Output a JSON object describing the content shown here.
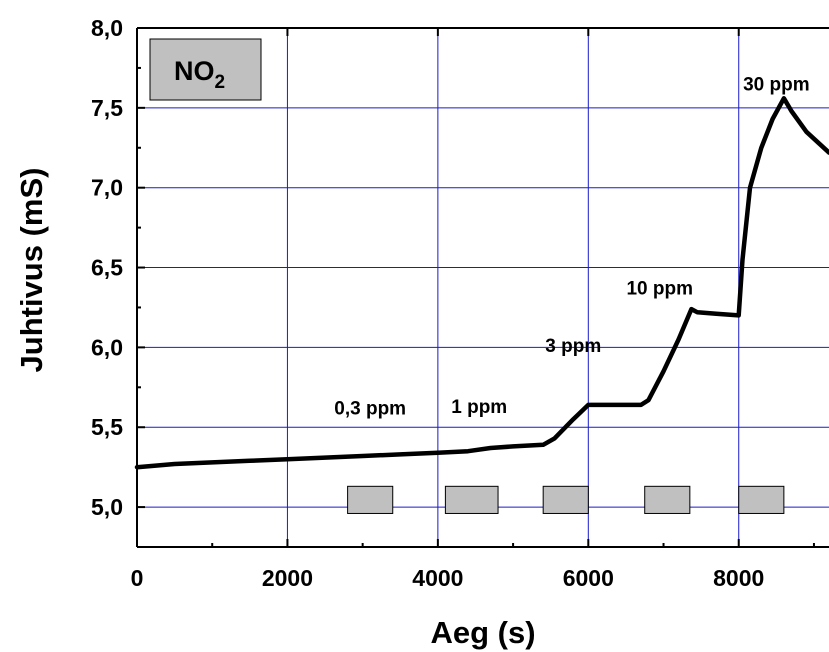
{
  "chart_data": {
    "type": "line",
    "xlabel": "Aeg (s)",
    "ylabel": "Juhtivus (mS)",
    "xlim": [
      0,
      9200
    ],
    "ylim": [
      4.75,
      8.0
    ],
    "grid": true,
    "grid_color": "#1a1acc",
    "line_color": "#000000",
    "pulse_color": "#c0c0c0",
    "x_ticks": [
      {
        "value": 0,
        "label": "0"
      },
      {
        "value": 2000,
        "label": "2000"
      },
      {
        "value": 4000,
        "label": "4000"
      },
      {
        "value": 6000,
        "label": "6000"
      },
      {
        "value": 8000,
        "label": "8000"
      }
    ],
    "y_ticks": [
      {
        "value": 5.0,
        "label": "5,0"
      },
      {
        "value": 5.5,
        "label": "5,5"
      },
      {
        "value": 6.0,
        "label": "6,0"
      },
      {
        "value": 6.5,
        "label": "6,5"
      },
      {
        "value": 7.0,
        "label": "7,0"
      },
      {
        "value": 7.5,
        "label": "7,5"
      },
      {
        "value": 8.0,
        "label": "8,0"
      }
    ],
    "legend": {
      "label": "NO",
      "subscript": "2",
      "position": "top-left"
    },
    "series": [
      {
        "x": [
          0,
          500,
          1000,
          1500,
          2000,
          2500,
          3000,
          3500,
          4000,
          4400,
          4700,
          5000,
          5400,
          5550,
          5800,
          6000,
          6200,
          6700,
          6800,
          7000,
          7200,
          7370,
          7450,
          7700,
          8000,
          8050,
          8150,
          8300,
          8450,
          8600,
          8700,
          8900,
          9200
        ],
        "y": [
          5.25,
          5.27,
          5.28,
          5.29,
          5.3,
          5.31,
          5.32,
          5.33,
          5.34,
          5.35,
          5.37,
          5.38,
          5.39,
          5.43,
          5.55,
          5.64,
          5.64,
          5.64,
          5.67,
          5.85,
          6.05,
          6.24,
          6.22,
          6.21,
          6.2,
          6.55,
          7.0,
          7.25,
          7.43,
          7.56,
          7.48,
          7.35,
          7.22
        ]
      }
    ],
    "annotations": [
      {
        "text": "0,3 ppm",
        "x": 3100,
        "y": 5.58
      },
      {
        "text": "1 ppm",
        "x": 4550,
        "y": 5.59
      },
      {
        "text": "3 ppm",
        "x": 5800,
        "y": 5.97
      },
      {
        "text": "10 ppm",
        "x": 6950,
        "y": 6.33
      },
      {
        "text": "30 ppm",
        "x": 8500,
        "y": 7.61
      }
    ],
    "gas_pulses": [
      {
        "start": 2800,
        "end": 3400,
        "concentration": "0,3 ppm"
      },
      {
        "start": 4100,
        "end": 4800,
        "concentration": "1 ppm"
      },
      {
        "start": 5400,
        "end": 6000,
        "concentration": "3 ppm"
      },
      {
        "start": 6750,
        "end": 7350,
        "concentration": "10 ppm"
      },
      {
        "start": 8000,
        "end": 8600,
        "concentration": "30 ppm"
      }
    ],
    "pulse_band": [
      4.96,
      5.13
    ]
  }
}
